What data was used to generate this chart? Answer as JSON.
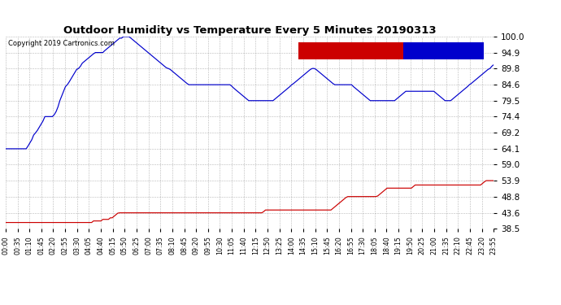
{
  "title": "Outdoor Humidity vs Temperature Every 5 Minutes 20190313",
  "copyright": "Copyright 2019 Cartronics.com",
  "background_color": "#ffffff",
  "plot_bg_color": "#ffffff",
  "grid_color": "#888888",
  "ylim": [
    38.5,
    100.0
  ],
  "yticks": [
    38.5,
    43.6,
    48.8,
    53.9,
    59.0,
    64.1,
    69.2,
    74.4,
    79.5,
    84.6,
    89.8,
    94.9,
    100.0
  ],
  "humidity_color": "#0000cc",
  "temperature_color": "#cc0000",
  "legend_temp_bg": "#cc0000",
  "legend_hum_bg": "#0000cc",
  "legend_text_color": "#ffffff",
  "humidity_data": [
    64.1,
    64.1,
    64.1,
    64.1,
    64.1,
    64.1,
    64.1,
    64.1,
    64.1,
    64.1,
    64.1,
    64.1,
    65.0,
    66.0,
    67.0,
    68.5,
    69.2,
    70.0,
    71.0,
    72.0,
    73.0,
    74.4,
    74.4,
    74.4,
    74.4,
    74.4,
    75.0,
    76.0,
    77.5,
    79.5,
    81.0,
    82.5,
    84.0,
    84.6,
    85.5,
    86.5,
    87.5,
    88.5,
    89.5,
    89.8,
    90.5,
    91.5,
    92.0,
    92.5,
    93.0,
    93.5,
    94.0,
    94.5,
    94.9,
    94.9,
    94.9,
    94.9,
    94.9,
    95.5,
    96.0,
    96.5,
    97.0,
    97.5,
    98.0,
    98.5,
    99.0,
    99.5,
    99.5,
    100.0,
    100.0,
    100.0,
    100.0,
    99.5,
    99.0,
    98.5,
    98.0,
    97.5,
    97.0,
    96.5,
    96.0,
    95.5,
    95.0,
    94.5,
    94.0,
    93.5,
    93.0,
    92.5,
    92.0,
    91.5,
    91.0,
    90.5,
    90.0,
    89.8,
    89.5,
    89.0,
    88.5,
    88.0,
    87.5,
    87.0,
    86.5,
    86.0,
    85.5,
    85.0,
    84.6,
    84.6,
    84.6,
    84.6,
    84.6,
    84.6,
    84.6,
    84.6,
    84.6,
    84.6,
    84.6,
    84.6,
    84.6,
    84.6,
    84.6,
    84.6,
    84.6,
    84.6,
    84.6,
    84.6,
    84.6,
    84.6,
    84.6,
    84.1,
    83.5,
    83.0,
    82.5,
    82.0,
    81.5,
    81.0,
    80.5,
    80.0,
    79.5,
    79.5,
    79.5,
    79.5,
    79.5,
    79.5,
    79.5,
    79.5,
    79.5,
    79.5,
    79.5,
    79.5,
    79.5,
    79.5,
    80.0,
    80.5,
    81.0,
    81.5,
    82.0,
    82.5,
    83.0,
    83.5,
    84.0,
    84.6,
    85.0,
    85.5,
    86.0,
    86.5,
    87.0,
    87.5,
    88.0,
    88.5,
    89.0,
    89.5,
    89.8,
    89.8,
    89.5,
    89.0,
    88.5,
    88.0,
    87.5,
    87.0,
    86.5,
    86.0,
    85.5,
    85.0,
    84.6,
    84.6,
    84.6,
    84.6,
    84.6,
    84.6,
    84.6,
    84.6,
    84.6,
    84.6,
    84.0,
    83.5,
    83.0,
    82.5,
    82.0,
    81.5,
    81.0,
    80.5,
    80.0,
    79.5,
    79.5,
    79.5,
    79.5,
    79.5,
    79.5,
    79.5,
    79.5,
    79.5,
    79.5,
    79.5,
    79.5,
    79.5,
    79.5,
    80.0,
    80.5,
    81.0,
    81.5,
    82.0,
    82.5,
    82.5,
    82.5,
    82.5,
    82.5,
    82.5,
    82.5,
    82.5,
    82.5,
    82.5,
    82.5,
    82.5,
    82.5,
    82.5,
    82.5,
    82.5,
    82.0,
    81.5,
    81.0,
    80.5,
    80.0,
    79.5,
    79.5,
    79.5,
    79.5,
    80.0,
    80.5,
    81.0,
    81.5,
    82.0,
    82.5,
    83.0,
    83.5,
    84.0,
    84.6,
    85.0,
    85.5,
    86.0,
    86.5,
    87.0,
    87.5,
    88.0,
    88.5,
    89.0,
    89.5,
    89.8,
    90.5,
    91.0
  ],
  "temperature_data": [
    40.5,
    40.5,
    40.5,
    40.5,
    40.5,
    40.5,
    40.5,
    40.5,
    40.5,
    40.5,
    40.5,
    40.5,
    40.5,
    40.5,
    40.5,
    40.5,
    40.5,
    40.5,
    40.5,
    40.5,
    40.5,
    40.5,
    40.5,
    40.5,
    40.5,
    40.5,
    40.5,
    40.5,
    40.5,
    40.5,
    40.5,
    40.5,
    40.5,
    40.5,
    40.5,
    40.5,
    40.5,
    40.5,
    40.5,
    40.5,
    40.5,
    40.5,
    40.5,
    40.5,
    40.5,
    40.5,
    40.5,
    41.0,
    41.0,
    41.0,
    41.0,
    41.0,
    41.5,
    41.5,
    41.5,
    41.5,
    42.0,
    42.0,
    42.5,
    43.0,
    43.5,
    43.6,
    43.6,
    43.6,
    43.6,
    43.6,
    43.6,
    43.6,
    43.6,
    43.6,
    43.6,
    43.6,
    43.6,
    43.6,
    43.6,
    43.6,
    43.6,
    43.6,
    43.6,
    43.6,
    43.6,
    43.6,
    43.6,
    43.6,
    43.6,
    43.6,
    43.6,
    43.6,
    43.6,
    43.6,
    43.6,
    43.6,
    43.6,
    43.6,
    43.6,
    43.6,
    43.6,
    43.6,
    43.6,
    43.6,
    43.6,
    43.6,
    43.6,
    43.6,
    43.6,
    43.6,
    43.6,
    43.6,
    43.6,
    43.6,
    43.6,
    43.6,
    43.6,
    43.6,
    43.6,
    43.6,
    43.6,
    43.6,
    43.6,
    43.6,
    43.6,
    43.6,
    43.6,
    43.6,
    43.6,
    43.6,
    43.6,
    43.6,
    43.6,
    43.6,
    43.6,
    43.6,
    43.6,
    43.6,
    43.6,
    43.6,
    43.6,
    43.6,
    44.0,
    44.5,
    44.5,
    44.5,
    44.5,
    44.5,
    44.5,
    44.5,
    44.5,
    44.5,
    44.5,
    44.5,
    44.5,
    44.5,
    44.5,
    44.5,
    44.5,
    44.5,
    44.5,
    44.5,
    44.5,
    44.5,
    44.5,
    44.5,
    44.5,
    44.5,
    44.5,
    44.5,
    44.5,
    44.5,
    44.5,
    44.5,
    44.5,
    44.5,
    44.5,
    44.5,
    44.5,
    45.0,
    45.5,
    46.0,
    46.5,
    47.0,
    47.5,
    48.0,
    48.5,
    48.8,
    48.8,
    48.8,
    48.8,
    48.8,
    48.8,
    48.8,
    48.8,
    48.8,
    48.8,
    48.8,
    48.8,
    48.8,
    48.8,
    48.8,
    48.8,
    49.0,
    49.5,
    50.0,
    50.5,
    51.0,
    51.5,
    51.5,
    51.5,
    51.5,
    51.5,
    51.5,
    51.5,
    51.5,
    51.5,
    51.5,
    51.5,
    51.5,
    51.5,
    51.5,
    52.0,
    52.5,
    52.5,
    52.5,
    52.5,
    52.5,
    52.5,
    52.5,
    52.5,
    52.5,
    52.5,
    52.5,
    52.5,
    52.5,
    52.5,
    52.5,
    52.5,
    52.5,
    52.5,
    52.5,
    52.5,
    52.5,
    52.5,
    52.5,
    52.5,
    52.5,
    52.5,
    52.5,
    52.5,
    52.5,
    52.5,
    52.5,
    52.5,
    52.5,
    52.5,
    52.5,
    52.5,
    53.0,
    53.5,
    53.9,
    53.9,
    53.9,
    53.9,
    53.9
  ],
  "xtick_labels": [
    "00:00",
    "00:35",
    "01:10",
    "01:45",
    "02:20",
    "02:55",
    "03:30",
    "04:05",
    "04:40",
    "05:15",
    "05:50",
    "06:25",
    "07:00",
    "07:35",
    "08:10",
    "08:45",
    "09:20",
    "09:55",
    "10:30",
    "11:05",
    "11:40",
    "12:15",
    "12:50",
    "13:25",
    "14:00",
    "14:35",
    "15:10",
    "15:45",
    "16:20",
    "16:55",
    "17:30",
    "18:05",
    "18:40",
    "19:15",
    "19:50",
    "20:25",
    "21:00",
    "21:35",
    "22:10",
    "22:45",
    "23:20",
    "23:55"
  ]
}
